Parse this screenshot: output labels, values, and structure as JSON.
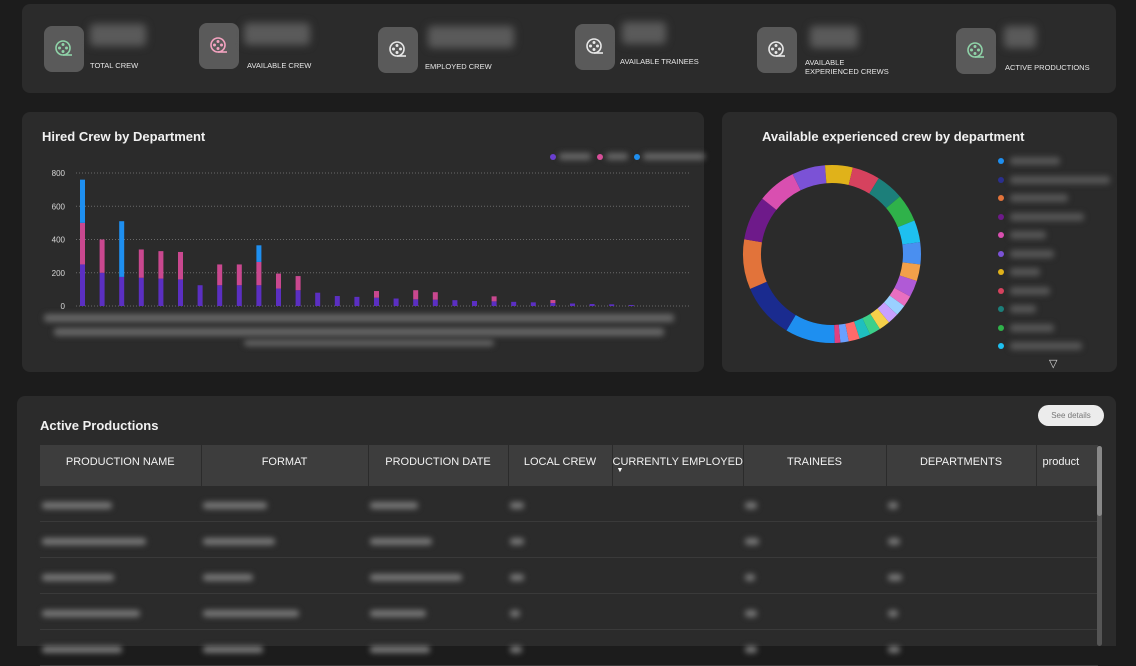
{
  "kpis": [
    {
      "label": "TOTAL CREW",
      "value": "10,321",
      "icon": "film-reel-icon",
      "icon_color": "#8fd3a8"
    },
    {
      "label": "AVAILABLE CREW",
      "value": "14,279",
      "icon": "film-reel-icon",
      "icon_color": "#f4a3c0"
    },
    {
      "label": "EMPLOYED CREW",
      "value": "(Blank)",
      "icon": "film-reel-icon",
      "icon_color": "#e8e8e8"
    },
    {
      "label": "AVAILABLE TRAINEES",
      "value": "649",
      "icon": "film-reel-icon",
      "icon_color": "#e8e8e8"
    },
    {
      "label": "AVAILABLE EXPERIENCED CREWS",
      "value": "7,180",
      "icon": "film-reel-icon",
      "icon_color": "#e8e8e8"
    },
    {
      "label": "ACTIVE PRODUCTIONS",
      "value": "36",
      "icon": "film-reel-icon",
      "icon_color": "#8fd3a8"
    }
  ],
  "hired": {
    "title": "Hired Crew by Department",
    "legend": [
      {
        "name": "",
        "color": "#6a3fd1"
      },
      {
        "name": "",
        "color": "#d94f9a"
      },
      {
        "name": "",
        "color": "#1e8ff0"
      }
    ]
  },
  "chart_data": {
    "type": "bar",
    "stacked": true,
    "ylim": [
      0,
      800
    ],
    "yticks": [
      "0",
      "200",
      "400",
      "600",
      "800"
    ],
    "grid": true,
    "colors": [
      "#5b2fc2",
      "#c9488f",
      "#1e8ff0"
    ],
    "series": [
      {
        "values": [
          250,
          200,
          175,
          170,
          165,
          160,
          125,
          125,
          125,
          125,
          105,
          95,
          80,
          60,
          55,
          50,
          45,
          40,
          38,
          35,
          30,
          28,
          25,
          22,
          18,
          15,
          12,
          10,
          6
        ]
      },
      {
        "values": [
          250,
          200,
          0,
          170,
          165,
          165,
          0,
          125,
          125,
          140,
          90,
          85,
          0,
          0,
          0,
          40,
          0,
          55,
          45,
          0,
          0,
          30,
          0,
          0,
          18,
          0,
          0,
          0,
          0
        ]
      },
      {
        "values": [
          260,
          0,
          335,
          0,
          0,
          0,
          0,
          0,
          0,
          100,
          0,
          0,
          0,
          0,
          0,
          0,
          0,
          0,
          0,
          0,
          0,
          0,
          0,
          0,
          0,
          0,
          0,
          0,
          0
        ]
      }
    ]
  },
  "avail": {
    "title": "Available experienced crew by department",
    "legend_colors": [
      "#1e8ff0",
      "#2a2f8f",
      "#e2733a",
      "#6e1a8a",
      "#d94fb0",
      "#7b52d6",
      "#e0b21a",
      "#d6425e",
      "#1c7f7a",
      "#2fb24a",
      "#1ec0f0"
    ]
  },
  "donut": [
    {
      "value": 9,
      "color": "#1e8ff0"
    },
    {
      "value": 10,
      "color": "#1a2b8f"
    },
    {
      "value": 9,
      "color": "#e2733a"
    },
    {
      "value": 8,
      "color": "#6e1a8a"
    },
    {
      "value": 7,
      "color": "#d94fb0"
    },
    {
      "value": 6,
      "color": "#7b52d6"
    },
    {
      "value": 5,
      "color": "#e0b21a"
    },
    {
      "value": 5,
      "color": "#d6425e"
    },
    {
      "value": 5,
      "color": "#1c7f7a"
    },
    {
      "value": 5,
      "color": "#2fb24a"
    },
    {
      "value": 4,
      "color": "#1ec0f0"
    },
    {
      "value": 4,
      "color": "#4a8ff0"
    },
    {
      "value": 3,
      "color": "#f2a04a"
    },
    {
      "value": 3,
      "color": "#b05ad6"
    },
    {
      "value": 2,
      "color": "#e86fc0"
    },
    {
      "value": 2,
      "color": "#9ad0ff"
    },
    {
      "value": 2,
      "color": "#c8a0ff"
    },
    {
      "value": 2,
      "color": "#f5d04a"
    },
    {
      "value": 2,
      "color": "#3cd08a"
    },
    {
      "value": 2,
      "color": "#1fbfbf"
    },
    {
      "value": 2,
      "color": "#ff6a6a"
    },
    {
      "value": 1.5,
      "color": "#6aa0ff"
    },
    {
      "value": 1,
      "color": "#e04080"
    }
  ],
  "productions": {
    "title": "Active Productions",
    "see_details": "See details",
    "columns": [
      "PRODUCTION NAME",
      "FORMAT",
      "PRODUCTION DATE",
      "LOCAL CREW",
      "CURRENTLY EMPLOYED",
      "TRAINEES",
      "DEPARTMENTS",
      "product"
    ]
  }
}
